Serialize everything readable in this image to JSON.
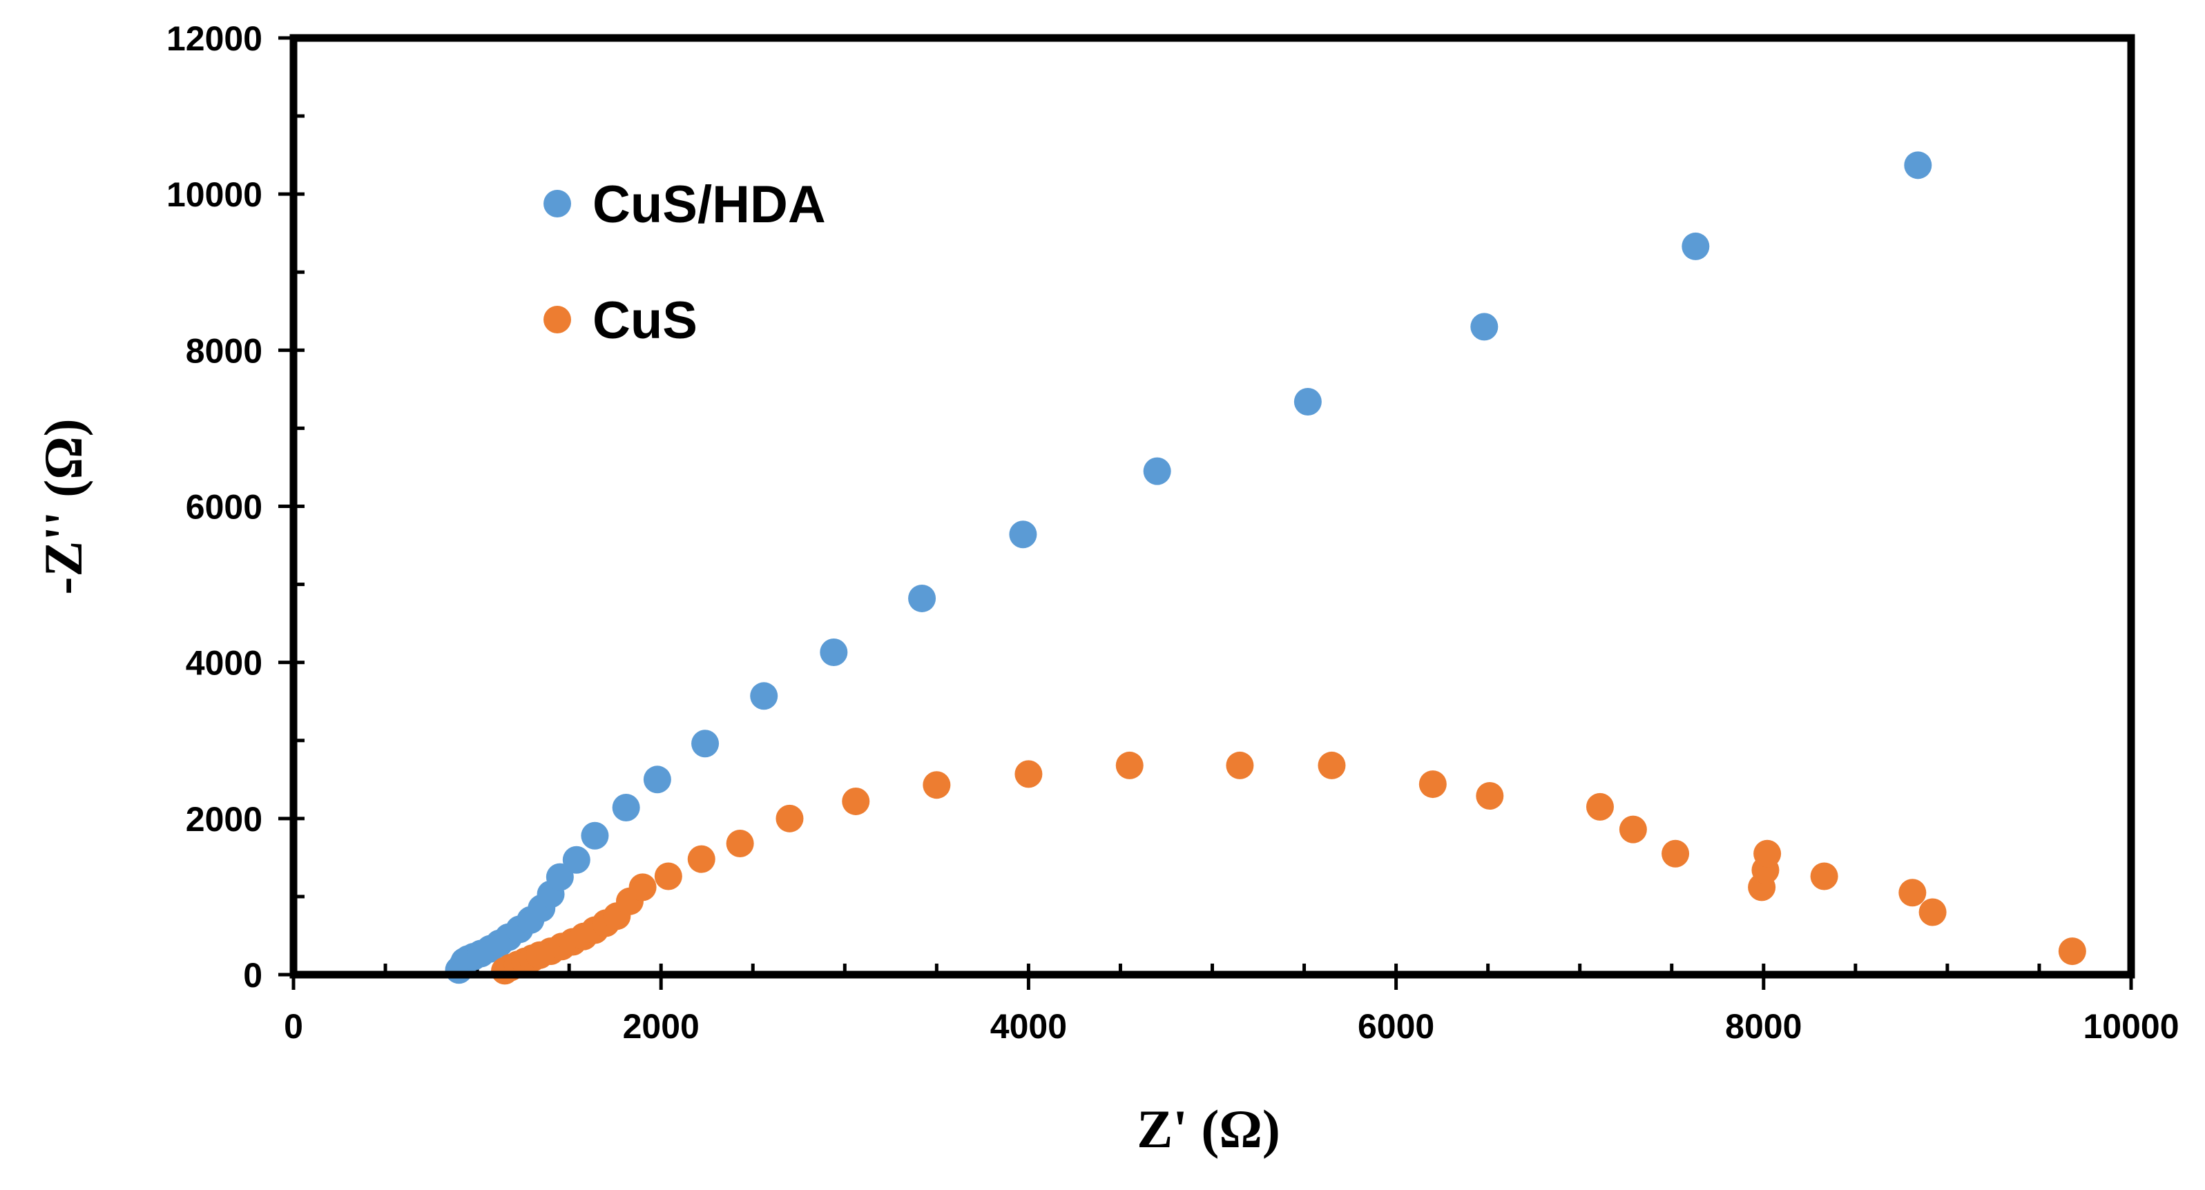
{
  "chart_data": {
    "type": "scatter",
    "title": "",
    "xlabel": "Z' (Ω)",
    "ylabel": "-Z'' (Ω)",
    "xlim": [
      0,
      10000
    ],
    "ylim": [
      0,
      12000
    ],
    "x_ticks": [
      "0",
      "2000",
      "4000",
      "6000",
      "8000",
      "10000"
    ],
    "y_ticks": [
      "0",
      "2000",
      "4000",
      "6000",
      "8000",
      "10000",
      "12000"
    ],
    "x_tick_values": [
      0,
      2000,
      4000,
      6000,
      8000,
      10000
    ],
    "y_tick_values": [
      0,
      2000,
      4000,
      6000,
      8000,
      10000,
      12000
    ],
    "grid": false,
    "legend_position": "top-left",
    "series": [
      {
        "name": "CuS/HDA",
        "color": "#5B9BD5",
        "points": [
          [
            900,
            60
          ],
          [
            920,
            120
          ],
          [
            930,
            170
          ],
          [
            950,
            200
          ],
          [
            980,
            230
          ],
          [
            1020,
            270
          ],
          [
            1070,
            330
          ],
          [
            1120,
            400
          ],
          [
            1170,
            480
          ],
          [
            1230,
            580
          ],
          [
            1290,
            700
          ],
          [
            1350,
            850
          ],
          [
            1400,
            1030
          ],
          [
            1450,
            1250
          ],
          [
            1540,
            1470
          ],
          [
            1640,
            1780
          ],
          [
            1810,
            2140
          ],
          [
            1980,
            2500
          ],
          [
            2240,
            2960
          ],
          [
            2560,
            3570
          ],
          [
            2940,
            4130
          ],
          [
            3420,
            4820
          ],
          [
            3970,
            5640
          ],
          [
            4700,
            6450
          ],
          [
            5520,
            7340
          ],
          [
            6480,
            8300
          ],
          [
            7630,
            9330
          ],
          [
            8840,
            10370
          ]
        ]
      },
      {
        "name": "CuS",
        "color": "#ED7D31",
        "points": [
          [
            1150,
            50
          ],
          [
            1180,
            90
          ],
          [
            1220,
            130
          ],
          [
            1260,
            170
          ],
          [
            1300,
            210
          ],
          [
            1340,
            250
          ],
          [
            1400,
            300
          ],
          [
            1460,
            360
          ],
          [
            1520,
            420
          ],
          [
            1580,
            490
          ],
          [
            1640,
            570
          ],
          [
            1700,
            660
          ],
          [
            1760,
            750
          ],
          [
            1830,
            940
          ],
          [
            1900,
            1120
          ],
          [
            2040,
            1260
          ],
          [
            2220,
            1480
          ],
          [
            2430,
            1680
          ],
          [
            2700,
            2000
          ],
          [
            3060,
            2220
          ],
          [
            3500,
            2430
          ],
          [
            4000,
            2570
          ],
          [
            4550,
            2680
          ],
          [
            5150,
            2680
          ],
          [
            5650,
            2680
          ],
          [
            6200,
            2440
          ],
          [
            6510,
            2290
          ],
          [
            7110,
            2150
          ],
          [
            7290,
            1860
          ],
          [
            7520,
            1550
          ],
          [
            7990,
            1120
          ],
          [
            8010,
            1340
          ],
          [
            8020,
            1550
          ],
          [
            8330,
            1260
          ],
          [
            8810,
            1050
          ],
          [
            8920,
            800
          ],
          [
            9680,
            300
          ]
        ]
      }
    ]
  }
}
